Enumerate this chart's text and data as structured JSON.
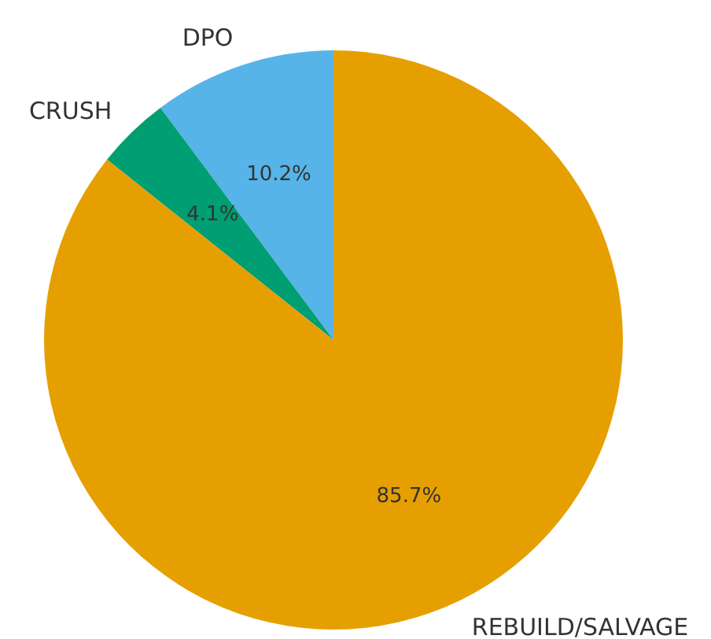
{
  "chart_data": {
    "type": "pie",
    "categories": [
      "DPO",
      "CRUSH",
      "REBUILD/SALVAGE"
    ],
    "values": [
      10.2,
      4.1,
      85.7
    ],
    "colors": [
      "#56b4e9",
      "#009e73",
      "#e69f00"
    ],
    "value_labels": [
      "10.2%",
      "4.1%",
      "85.7%"
    ],
    "legend": false
  }
}
